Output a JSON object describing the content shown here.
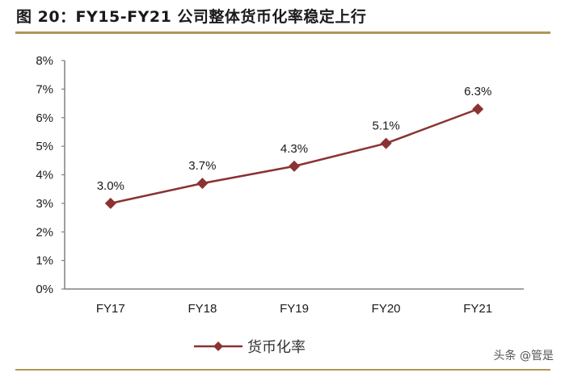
{
  "title": "图 20：FY15-FY21 公司整体货币化率稳定上行",
  "watermark": "头条 @管是",
  "colors": {
    "line": "#8b3232",
    "axis": "#808080",
    "rule": "#b0955a"
  },
  "chart_data": {
    "type": "line",
    "title": "图 20：FY15-FY21 公司整体货币化率稳定上行",
    "categories": [
      "FY17",
      "FY18",
      "FY19",
      "FY20",
      "FY21"
    ],
    "series": [
      {
        "name": "货币化率",
        "values": [
          3.0,
          3.7,
          4.3,
          5.1,
          6.3
        ],
        "labels": [
          "3.0%",
          "3.7%",
          "4.3%",
          "5.1%",
          "6.3%"
        ]
      }
    ],
    "xlabel": "",
    "ylabel": "",
    "ylim": [
      0,
      8
    ],
    "yticks": [
      "0%",
      "1%",
      "2%",
      "3%",
      "4%",
      "5%",
      "6%",
      "7%",
      "8%"
    ],
    "grid": false,
    "legend_position": "bottom"
  },
  "legend": {
    "label": "货币化率"
  }
}
